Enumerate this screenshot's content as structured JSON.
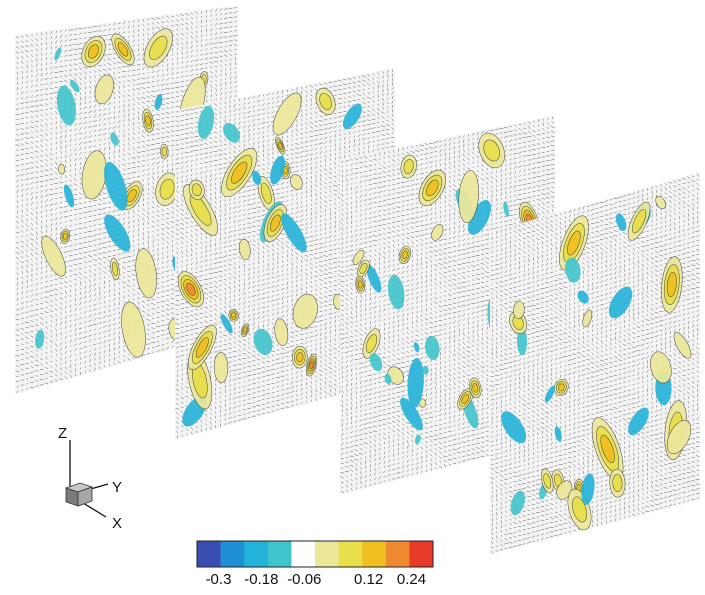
{
  "figure": {
    "planes": [
      {
        "id": "plane-1",
        "seed": 11
      },
      {
        "id": "plane-2",
        "seed": 23
      },
      {
        "id": "plane-3",
        "seed": 37
      },
      {
        "id": "plane-4",
        "seed": 53
      }
    ]
  },
  "axes": {
    "z": "Z",
    "y": "Y",
    "x": "X"
  },
  "colorbar": {
    "colors": [
      "#3a4db0",
      "#1f8fd6",
      "#23b3d8",
      "#40c4cc",
      "#ffffff",
      "#ece89a",
      "#e8df4a",
      "#f0bf22",
      "#f08a30",
      "#e83a28"
    ],
    "tick_labels": [
      "-0.3",
      "-0.18",
      "-0.06",
      "0.12",
      "0.24"
    ],
    "tick_values": [
      -0.3,
      -0.18,
      -0.06,
      0.12,
      0.24
    ]
  }
}
